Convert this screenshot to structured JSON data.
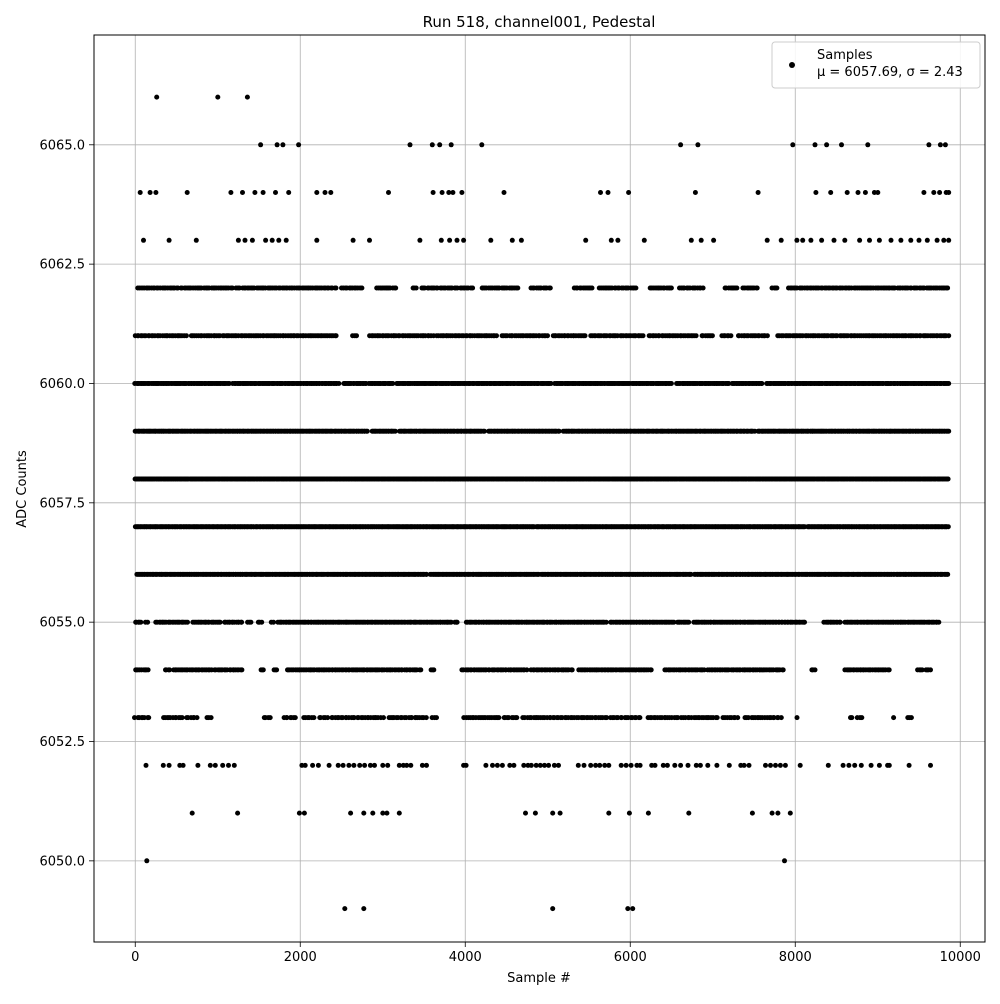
{
  "chart_data": {
    "type": "scatter",
    "title": "Run 518, channel001, Pedestal",
    "xlabel": "Sample #",
    "ylabel": "ADC Counts",
    "xlim": [
      -500,
      10300
    ],
    "ylim": [
      6048.3,
      6067.3
    ],
    "xticks": [
      0,
      2000,
      4000,
      6000,
      8000,
      10000
    ],
    "xtick_labels": [
      "0",
      "2000",
      "4000",
      "6000",
      "8000",
      "10000"
    ],
    "yticks": [
      6050.0,
      6052.5,
      6055.0,
      6057.5,
      6060.0,
      6062.5,
      6065.0
    ],
    "ytick_labels": [
      "6050.0",
      "6052.5",
      "6055.0",
      "6057.5",
      "6060.0",
      "6062.5",
      "6065.0"
    ],
    "grid": true,
    "legend": {
      "placement": "top-right",
      "label": "Samples",
      "stats": "μ = 6057.69, σ = 2.43"
    },
    "marker_color": "#000000",
    "series": [
      {
        "name": "Samples",
        "points": [
          [
            260,
            6066
          ],
          [
            1000,
            6066
          ],
          [
            1360,
            6066
          ],
          [
            1520,
            6065
          ],
          [
            1720,
            6065
          ],
          [
            1790,
            6065
          ],
          [
            1980,
            6065
          ],
          [
            3330,
            6065
          ],
          [
            3600,
            6065
          ],
          [
            3690,
            6065
          ],
          [
            3830,
            6065
          ],
          [
            4200,
            6065
          ],
          [
            6610,
            6065
          ],
          [
            6820,
            6065
          ],
          [
            7970,
            6065
          ],
          [
            8240,
            6065
          ],
          [
            8380,
            6065
          ],
          [
            8560,
            6065
          ],
          [
            8880,
            6065
          ],
          [
            9620,
            6065
          ],
          [
            9760,
            6065
          ],
          [
            9820,
            6065
          ],
          [
            140,
            6050
          ],
          [
            7870,
            6050
          ],
          [
            2540,
            6049
          ],
          [
            2770,
            6049
          ],
          [
            5060,
            6049
          ],
          [
            5970,
            6049
          ],
          [
            6030,
            6049
          ],
          [
            690,
            6051
          ],
          [
            1240,
            6051
          ],
          [
            1990,
            6051
          ],
          [
            2050,
            6051
          ],
          [
            2610,
            6051
          ],
          [
            2770,
            6051
          ],
          [
            2880,
            6051
          ],
          [
            3000,
            6051
          ],
          [
            3050,
            6051
          ],
          [
            3200,
            6051
          ],
          [
            4730,
            6051
          ],
          [
            4850,
            6051
          ],
          [
            5060,
            6051
          ],
          [
            5150,
            6051
          ],
          [
            5740,
            6051
          ],
          [
            5990,
            6051
          ],
          [
            6220,
            6051
          ],
          [
            6710,
            6051
          ],
          [
            7480,
            6051
          ],
          [
            7720,
            6051
          ],
          [
            7790,
            6051
          ],
          [
            7940,
            6051
          ]
        ],
        "bands": [
          {
            "y": 6064,
            "x": [
              60,
              180,
              250,
              630,
              1160,
              1300,
              1450,
              1550,
              1700,
              1860,
              2200,
              2300,
              2370,
              3070,
              3610,
              3720,
              3800,
              3850,
              3960,
              4470,
              5640,
              5730,
              5980,
              6790,
              7550,
              8250,
              8430,
              8630,
              8760,
              8850,
              8960,
              9000,
              9560,
              9680,
              9750,
              9830,
              9860
            ]
          },
          {
            "y": 6063,
            "x": [
              100,
              410,
              740,
              1250,
              1330,
              1420,
              1580,
              1660,
              1740,
              1830,
              2200,
              2640,
              2840,
              3450,
              3710,
              3810,
              3900,
              3980,
              4310,
              4570,
              4680,
              5460,
              5770,
              5850,
              6170,
              6740,
              6860,
              7010,
              7660,
              7830,
              8020,
              8090,
              8190,
              8320,
              8470,
              8600,
              8780,
              8900,
              9020,
              9160,
              9280,
              9400,
              9500,
              9600,
              9720,
              9800,
              9860
            ]
          },
          {
            "y": 6062,
            "x0": 40,
            "x1": 9860,
            "step": 22,
            "gaps": [
              [
                1200,
                1220
              ],
              [
                2450,
                2500
              ],
              [
                2760,
                2920
              ],
              [
                3170,
                3340
              ],
              [
                3420,
                3470
              ],
              [
                4100,
                4180
              ],
              [
                4650,
                4780
              ],
              [
                5050,
                5300
              ],
              [
                5560,
                5620
              ],
              [
                6070,
                6240
              ],
              [
                6500,
                6580
              ],
              [
                6900,
                7140
              ],
              [
                7300,
                7360
              ],
              [
                7550,
                7700
              ],
              [
                7780,
                7900
              ]
            ]
          },
          {
            "y": 6061,
            "x0": 0,
            "x1": 9860,
            "step": 22,
            "gaps": [
              [
                640,
                680
              ],
              [
                2460,
                2620
              ],
              [
                2700,
                2840
              ],
              [
                3620,
                3640
              ],
              [
                4380,
                4440
              ],
              [
                5000,
                5060
              ],
              [
                5480,
                5520
              ],
              [
                6180,
                6220
              ],
              [
                6800,
                6860
              ],
              [
                7020,
                7100
              ],
              [
                7240,
                7300
              ],
              [
                7680,
                7780
              ]
            ]
          },
          {
            "y": 6060,
            "x0": 0,
            "x1": 9860,
            "step": 16,
            "gaps": [
              [
                1140,
                1180
              ],
              [
                2470,
                2520
              ],
              [
                2800,
                2830
              ],
              [
                3140,
                3160
              ],
              [
                5040,
                5080
              ],
              [
                6510,
                6540
              ],
              [
                7200,
                7220
              ],
              [
                7600,
                7640
              ]
            ]
          },
          {
            "y": 6059,
            "x0": 0,
            "x1": 9860,
            "step": 14,
            "gaps": [
              [
                2830,
                2860
              ],
              [
                3160,
                3200
              ],
              [
                4240,
                4270
              ],
              [
                5150,
                5180
              ],
              [
                7520,
                7540
              ]
            ]
          },
          {
            "y": 6058,
            "x0": 0,
            "x1": 9860,
            "step": 12,
            "gaps": []
          },
          {
            "y": 6057,
            "x0": 0,
            "x1": 9860,
            "step": 12,
            "gaps": [
              [
                4840,
                4860
              ],
              [
                8120,
                8140
              ]
            ]
          },
          {
            "y": 6056,
            "x0": 20,
            "x1": 9860,
            "step": 14,
            "gaps": [
              [
                3540,
                3570
              ],
              [
                4900,
                4920
              ],
              [
                6740,
                6770
              ]
            ]
          },
          {
            "y": 6055,
            "x0": 0,
            "x1": 9740,
            "step": 18,
            "gaps": [
              [
                80,
                110
              ],
              [
                160,
                240
              ],
              [
                640,
                690
              ],
              [
                1040,
                1080
              ],
              [
                1300,
                1360
              ],
              [
                1420,
                1480
              ],
              [
                1540,
                1640
              ],
              [
                1680,
                1720
              ],
              [
                3830,
                3860
              ],
              [
                3920,
                4000
              ],
              [
                5720,
                5760
              ],
              [
                6530,
                6560
              ],
              [
                6710,
                6760
              ],
              [
                8140,
                8340
              ],
              [
                8560,
                8600
              ]
            ]
          },
          {
            "y": 6054,
            "x0": 0,
            "x1": 9640,
            "step": 20,
            "gaps": [
              [
                180,
                340
              ],
              [
                420,
                460
              ],
              [
                930,
                960
              ],
              [
                1300,
                1510
              ],
              [
                1560,
                1680
              ],
              [
                1720,
                1830
              ],
              [
                3480,
                3560
              ],
              [
                3620,
                3690
              ],
              [
                3700,
                3950
              ],
              [
                4750,
                4790
              ],
              [
                5320,
                5370
              ],
              [
                6280,
                6400
              ],
              [
                6900,
                6930
              ],
              [
                7880,
                8200
              ],
              [
                8240,
                8600
              ],
              [
                9140,
                9480
              ],
              [
                9560,
                9580
              ]
            ]
          },
          {
            "y": 6053,
            "x0": 0,
            "x1": 9420,
            "step": 24,
            "gaps": [
              [
                180,
                320
              ],
              [
                580,
                620
              ],
              [
                760,
                850
              ],
              [
                930,
                1540
              ],
              [
                1640,
                1800
              ],
              [
                1960,
                2040
              ],
              [
                2180,
                2220
              ],
              [
                2340,
                2360
              ],
              [
                2600,
                2620
              ],
              [
                3010,
                3060
              ],
              [
                3540,
                3590
              ],
              [
                3660,
                3960
              ],
              [
                4430,
                4470
              ],
              [
                4640,
                4690
              ],
              [
                5730,
                5760
              ],
              [
                6150,
                6200
              ],
              [
                6580,
                6610
              ],
              [
                7060,
                7110
              ],
              [
                7310,
                7390
              ],
              [
                7840,
                7990
              ],
              [
                8030,
                8650
              ],
              [
                8700,
                8750
              ],
              [
                8820,
                9170
              ],
              [
                9210,
                9360
              ]
            ]
          }
        ],
        "sparse_row_6052": [
          130,
          340,
          410,
          540,
          580,
          760,
          910,
          970,
          1060,
          1130,
          1200,
          2020,
          2060,
          2150,
          2220,
          2350,
          2460,
          2520,
          2590,
          2650,
          2720,
          2780,
          2850,
          2900,
          3000,
          3060,
          3200,
          3250,
          3290,
          3340,
          3480,
          3530,
          3980,
          4010,
          4250,
          4330,
          4390,
          4450,
          4540,
          4590,
          4710,
          4760,
          4800,
          4860,
          4910,
          4960,
          5010,
          5080,
          5130,
          5370,
          5440,
          5520,
          5580,
          5630,
          5690,
          5740,
          5890,
          5950,
          6010,
          6080,
          6120,
          6260,
          6300,
          6400,
          6450,
          6540,
          6610,
          6700,
          6800,
          6850,
          6940,
          7050,
          7200,
          7340,
          7380,
          7440,
          7640,
          7700,
          7760,
          7820,
          7880,
          8060,
          8400,
          8580,
          8650,
          8720,
          8800,
          8920,
          9020,
          9120,
          9140,
          9380,
          9640
        ]
      }
    ]
  }
}
